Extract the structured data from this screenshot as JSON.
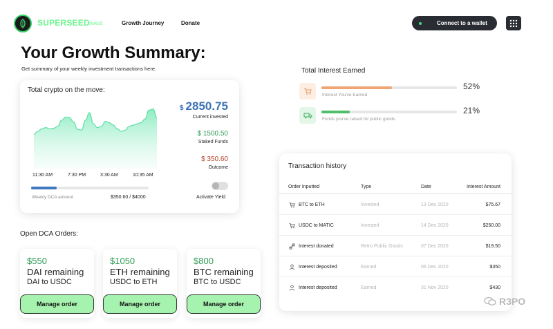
{
  "header": {
    "brand": "SUPERSEED",
    "nav": [
      {
        "label": "Invest",
        "active": true
      },
      {
        "label": "Growth Journey",
        "active": false
      },
      {
        "label": "Donate",
        "active": false
      }
    ],
    "wallet_button": "Connect to a wallet",
    "accent_color": "#6cf58e"
  },
  "summary": {
    "title": "Your Growth Summary:",
    "subtitle": "Get summary of your weekly investment transactions here."
  },
  "crypto_card": {
    "title": "Total crypto on the move:",
    "current_invested": {
      "currency": "$",
      "value": "2850.75",
      "label": "Current invested"
    },
    "staked": {
      "value": "$ 1500.50",
      "label": "Staked Funds"
    },
    "outcome": {
      "value": "$ 350.60",
      "label": "Outcome"
    },
    "chart_ticks": [
      "11:30 AM",
      "7:30 PM",
      "3:30 AM",
      "10:35 AM"
    ],
    "chart_series": [
      55,
      60,
      64,
      66,
      64,
      65,
      68,
      78,
      83,
      82,
      75,
      63,
      62,
      78,
      90,
      72,
      66,
      68,
      76,
      74,
      70,
      64,
      60,
      62,
      68,
      70,
      72,
      74,
      80,
      94,
      96,
      82
    ],
    "dca_label": "Weekly DCA amount",
    "dca_value": "$350.60 / $4000",
    "dca_progress": 0.22,
    "toggle_label": "Activate Yield",
    "toggle_on": false
  },
  "dca_orders": {
    "title": "Open DCA Orders:",
    "orders": [
      {
        "amount": "$550",
        "remaining": "DAI remaining",
        "pair": "DAI to USDC",
        "button": "Manage order"
      },
      {
        "amount": "$1050",
        "remaining": "ETH remaining",
        "pair": "USDC to ETH",
        "button": "Manage order"
      },
      {
        "amount": "$800",
        "remaining": "BTC remaining",
        "pair": "BTC to USDC",
        "button": "Manage order"
      }
    ]
  },
  "interest": {
    "title": "Total Interest Earned",
    "rows": [
      {
        "label": "Interest You've Earned",
        "percent": "52%",
        "progress": 0.52,
        "color": "#f0a46f",
        "icon": "cart-icon"
      },
      {
        "label": "Funds you've raised for public goods",
        "percent": "21%",
        "progress": 0.21,
        "color": "#4cbf68",
        "icon": "truck-icon"
      }
    ]
  },
  "transactions": {
    "title": "Transaction history",
    "headers": {
      "order": "Order Inputted",
      "type": "Type",
      "date": "Date",
      "amount": "Interest Amount"
    },
    "rows": [
      {
        "icon": "cart-icon",
        "order": "BTC to ETH",
        "type": "Invested",
        "date": "13 Dec 2020",
        "amount": "$75.67"
      },
      {
        "icon": "cart-icon",
        "order": "USDC to MATIC",
        "type": "Invested",
        "date": "14 Dec 2020",
        "amount": "$250.00"
      },
      {
        "icon": "link-icon",
        "order": "Interest donated",
        "type": "Retro Public Goods",
        "date": "07 Dec 2020",
        "amount": "$19.50"
      },
      {
        "icon": "user-icon",
        "order": "Interest deposited",
        "type": "Earned",
        "date": "06 Dec 2020",
        "amount": "$350"
      },
      {
        "icon": "user-icon",
        "order": "Interest deposited",
        "type": "Earned",
        "date": "31 Nov 2020",
        "amount": "$430"
      }
    ]
  },
  "watermark": "R3PO"
}
